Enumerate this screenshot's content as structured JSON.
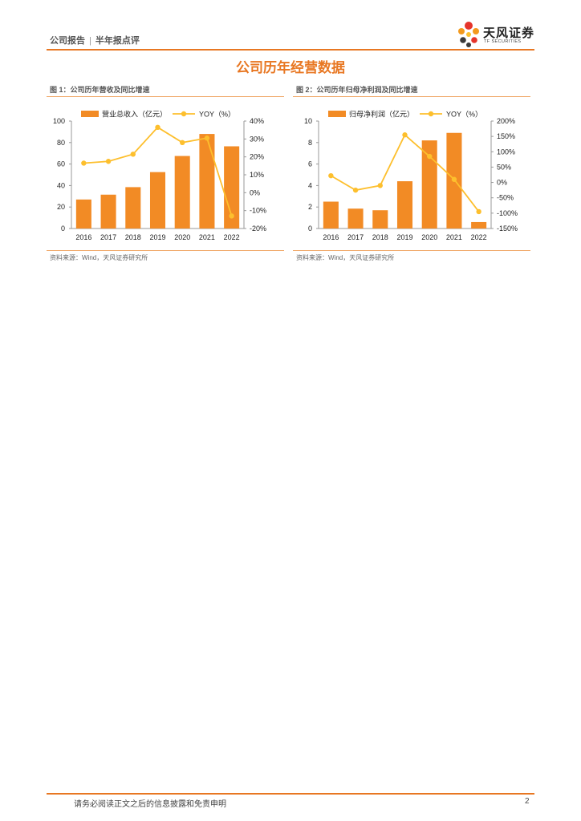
{
  "header": {
    "doc_type": "公司报告",
    "separator": "|",
    "sub_type": "半年报点评",
    "logo_name": "天风证券",
    "logo_sub": "TF SECURITIES",
    "accent_color": "#e87722"
  },
  "section_title": "公司历年经营数据",
  "figures": [
    {
      "caption": "图 1：公司历年营收及同比增速",
      "source": "资料来源：Wind，天风证券研究所"
    },
    {
      "caption": "图 2：公司历年归母净利润及同比增速",
      "source": "资料来源：Wind，天风证券研究所"
    }
  ],
  "chart_data": [
    {
      "type": "bar",
      "categories": [
        "2016",
        "2017",
        "2018",
        "2019",
        "2020",
        "2021",
        "2022"
      ],
      "series": [
        {
          "name": "营业总收入（亿元）",
          "kind": "bar",
          "axis": "left",
          "color": "#f28b25",
          "values": [
            27,
            31.5,
            38.5,
            52.5,
            67.5,
            88,
            76.5
          ]
        },
        {
          "name": "YOY（%）",
          "kind": "line",
          "axis": "right",
          "color": "#fdbf2d",
          "values": [
            16.5,
            17.5,
            21.5,
            36.5,
            28,
            30.5,
            -13
          ]
        }
      ],
      "left_ylim": [
        0,
        100
      ],
      "left_yticks": [
        0,
        20,
        40,
        60,
        80,
        100
      ],
      "left_ytick_labels": [
        "0",
        "20",
        "40",
        "60",
        "80",
        "100"
      ],
      "right_ylim": [
        -20,
        40
      ],
      "right_yticks": [
        -20,
        -10,
        0,
        10,
        20,
        30,
        40
      ],
      "right_ytick_labels": [
        "-20%",
        "-10%",
        "0%",
        "10%",
        "20%",
        "30%",
        "40%"
      ],
      "legend_position": "top",
      "grid": false
    },
    {
      "type": "bar",
      "categories": [
        "2016",
        "2017",
        "2018",
        "2019",
        "2020",
        "2021",
        "2022"
      ],
      "series": [
        {
          "name": "归母净利润（亿元）",
          "kind": "bar",
          "axis": "left",
          "color": "#f28b25",
          "values": [
            2.5,
            1.85,
            1.7,
            4.4,
            8.2,
            8.9,
            0.6
          ]
        },
        {
          "name": "YOY（%）",
          "kind": "line",
          "axis": "right",
          "color": "#fdbf2d",
          "values": [
            22,
            -25,
            -10,
            155,
            85,
            10,
            -95
          ]
        }
      ],
      "left_ylim": [
        0,
        10
      ],
      "left_yticks": [
        0,
        2,
        4,
        6,
        8,
        10
      ],
      "left_ytick_labels": [
        "0",
        "2",
        "4",
        "6",
        "8",
        "10"
      ],
      "right_ylim": [
        -150,
        200
      ],
      "right_yticks": [
        -150,
        -100,
        -50,
        0,
        50,
        100,
        150,
        200
      ],
      "right_ytick_labels": [
        "-150%",
        "-100%",
        "-50%",
        "0%",
        "50%",
        "100%",
        "150%",
        "200%"
      ],
      "legend_position": "top",
      "grid": false
    }
  ],
  "footer": {
    "disclaimer": "请务必阅读正文之后的信息披露和免责申明",
    "page_number": "2"
  }
}
